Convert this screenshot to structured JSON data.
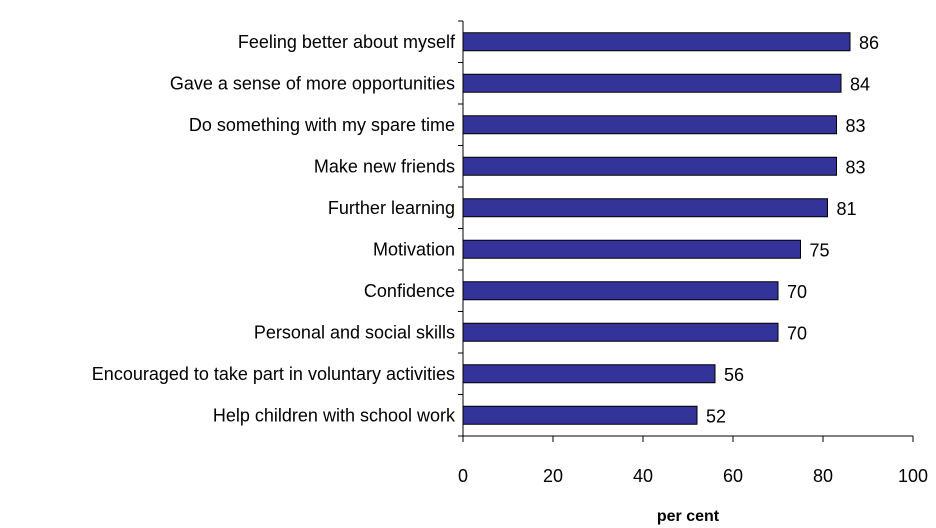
{
  "chart_data": {
    "type": "bar",
    "orientation": "horizontal",
    "title": "",
    "xlabel": "per cent",
    "ylabel": "",
    "xlim": [
      0,
      100
    ],
    "xticks": [
      0,
      20,
      40,
      60,
      80,
      100
    ],
    "grid": false,
    "legend": "none",
    "bar_color": "#333399",
    "categories": [
      "Feeling better about myself",
      "Gave a sense of more opportunities",
      "Do something with my spare time",
      "Make new friends",
      "Further learning",
      "Motivation",
      "Confidence",
      "Personal and social skills",
      "Encouraged to take part in voluntary activities",
      "Help children with school work"
    ],
    "values": [
      86,
      84,
      83,
      83,
      81,
      75,
      70,
      70,
      56,
      52
    ]
  }
}
